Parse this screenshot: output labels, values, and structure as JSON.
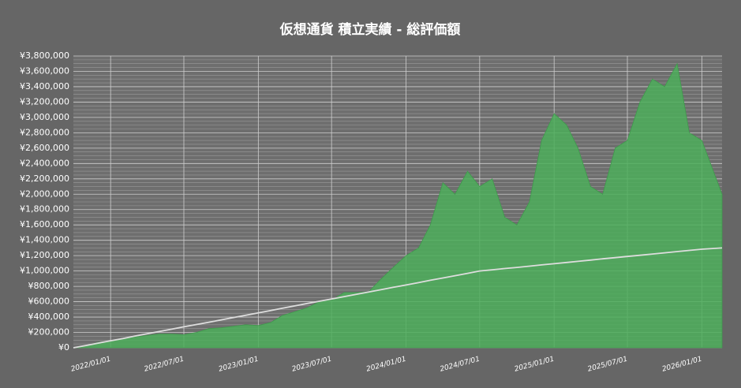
{
  "chart_data": {
    "type": "area",
    "title": "仮想通貨 積立実績 - 総評価額",
    "x": [
      "2021/10/01",
      "2021/11/01",
      "2021/12/01",
      "2022/01/01",
      "2022/02/01",
      "2022/03/01",
      "2022/04/01",
      "2022/05/01",
      "2022/06/01",
      "2022/07/01",
      "2022/08/01",
      "2022/09/01",
      "2022/10/01",
      "2022/11/01",
      "2022/12/01",
      "2023/01/01",
      "2023/02/01",
      "2023/03/01",
      "2023/04/01",
      "2023/05/01",
      "2023/06/01",
      "2023/07/01",
      "2023/08/01",
      "2023/09/01",
      "2023/10/01",
      "2023/11/01",
      "2023/12/01",
      "2024/01/01",
      "2024/02/01",
      "2024/03/01",
      "2024/04/01",
      "2024/05/01",
      "2024/06/01",
      "2024/07/01",
      "2024/08/01",
      "2024/09/01",
      "2024/10/01",
      "2024/11/01",
      "2024/12/01",
      "2025/01/01",
      "2025/02/01",
      "2025/03/01",
      "2025/04/01",
      "2025/05/01",
      "2025/06/01",
      "2025/07/01",
      "2025/08/01",
      "2025/09/01",
      "2025/10/01",
      "2025/11/01",
      "2025/12/01",
      "2026/01/01",
      "2026/02/20"
    ],
    "series": [
      {
        "color": "#4cae5a",
        "values": [
          0,
          30000,
          70000,
          90000,
          120000,
          140000,
          160000,
          180000,
          180000,
          170000,
          200000,
          250000,
          260000,
          280000,
          300000,
          290000,
          330000,
          420000,
          470000,
          520000,
          600000,
          620000,
          720000,
          720000,
          730000,
          900000,
          1050000,
          1200000,
          1300000,
          1600000,
          2150000,
          2000000,
          2300000,
          2100000,
          2200000,
          1700000,
          1600000,
          1900000,
          2700000,
          3050000,
          2900000,
          2600000,
          2100000,
          2000000,
          2600000,
          2700000,
          3200000,
          3500000,
          3400000,
          3700000,
          2800000,
          2700000,
          2000000
        ]
      },
      {
        "color": "#dddddd",
        "values": [
          0,
          30000,
          61000,
          91000,
          121000,
          152000,
          182000,
          212000,
          242000,
          273000,
          303000,
          333000,
          364000,
          394000,
          424000,
          455000,
          485000,
          515000,
          545000,
          576000,
          606000,
          636000,
          667000,
          697000,
          727000,
          758000,
          788000,
          818000,
          848000,
          879000,
          909000,
          939000,
          970000,
          1000000,
          1016000,
          1032000,
          1047000,
          1063000,
          1079000,
          1095000,
          1111000,
          1126000,
          1142000,
          1158000,
          1174000,
          1189000,
          1205000,
          1221000,
          1237000,
          1253000,
          1268000,
          1284000,
          1300000
        ]
      }
    ],
    "xlim": [
      "2021/10/01",
      "2026/02/20"
    ],
    "xticks": [
      "2022/01/01",
      "2022/07/01",
      "2023/01/01",
      "2023/07/01",
      "2024/01/01",
      "2024/07/01",
      "2025/01/01",
      "2025/07/01",
      "2026/01/01"
    ],
    "ylim": [
      0,
      3800000
    ],
    "yticks": [
      {
        "value": 0,
        "label": "¥0"
      },
      {
        "value": 200000,
        "label": "¥200,000"
      },
      {
        "value": 400000,
        "label": "¥400,000"
      },
      {
        "value": 600000,
        "label": "¥600,000"
      },
      {
        "value": 800000,
        "label": "¥800,000"
      },
      {
        "value": 1000000,
        "label": "¥1,000,000"
      },
      {
        "value": 1200000,
        "label": "¥1,200,000"
      },
      {
        "value": 1400000,
        "label": "¥1,400,000"
      },
      {
        "value": 1600000,
        "label": "¥1,600,000"
      },
      {
        "value": 1800000,
        "label": "¥1,800,000"
      },
      {
        "value": 2000000,
        "label": "¥2,000,000"
      },
      {
        "value": 2200000,
        "label": "¥2,200,000"
      },
      {
        "value": 2400000,
        "label": "¥2,400,000"
      },
      {
        "value": 2600000,
        "label": "¥2,600,000"
      },
      {
        "value": 2800000,
        "label": "¥2,800,000"
      },
      {
        "value": 3000000,
        "label": "¥3,000,000"
      },
      {
        "value": 3200000,
        "label": "¥3,200,000"
      },
      {
        "value": 3400000,
        "label": "¥3,400,000"
      },
      {
        "value": 3600000,
        "label": "¥3,600,000"
      },
      {
        "value": 3800000,
        "label": "¥3,800,000"
      }
    ],
    "grid": true
  }
}
